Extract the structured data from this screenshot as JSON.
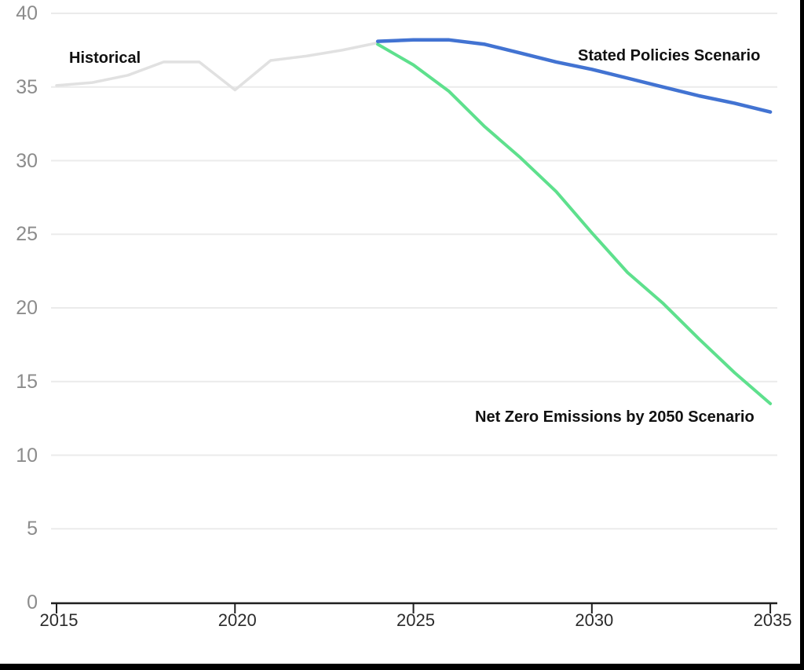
{
  "chart_data": {
    "type": "line",
    "title": "",
    "xlabel": "",
    "ylabel": "",
    "ylim": [
      0,
      40
    ],
    "xlim": [
      2015,
      2035
    ],
    "grid": "horizontal",
    "legend_position": "inline-annotations",
    "yticks": [
      0,
      5,
      10,
      15,
      20,
      25,
      30,
      35,
      40
    ],
    "xticks": [
      2015,
      2020,
      2025,
      2030,
      2035
    ],
    "series": [
      {
        "name": "Historical",
        "color": "#e1e1e1",
        "x": [
          2015,
          2016,
          2017,
          2018,
          2019,
          2020,
          2021,
          2022,
          2023,
          2024
        ],
        "values": [
          35.1,
          35.3,
          35.8,
          36.7,
          36.7,
          34.8,
          36.8,
          37.1,
          37.5,
          38.0
        ]
      },
      {
        "name": "Stated Policies Scenario",
        "color": "#4273d2",
        "x": [
          2024,
          2025,
          2026,
          2027,
          2028,
          2029,
          2030,
          2031,
          2032,
          2033,
          2034,
          2035
        ],
        "values": [
          38.1,
          38.2,
          38.2,
          37.9,
          37.3,
          36.7,
          36.2,
          35.6,
          35.0,
          34.4,
          33.9,
          33.3
        ]
      },
      {
        "name": "Net Zero Emissions by 2050 Scenario",
        "color": "#5ee08d",
        "x": [
          2024,
          2025,
          2026,
          2027,
          2028,
          2029,
          2030,
          2031,
          2032,
          2033,
          2034,
          2035
        ],
        "values": [
          37.9,
          36.5,
          34.7,
          32.3,
          30.2,
          27.9,
          25.1,
          22.4,
          20.3,
          17.9,
          15.6,
          13.5
        ]
      }
    ],
    "annotations": [
      "Historical",
      "Stated Policies Scenario",
      "Net Zero Emissions by 2050 Scenario"
    ]
  },
  "colors": {
    "background": "#ffffff",
    "frame_border": "#000000",
    "axis": "#1f1f1f",
    "gridline": "#ebebeb",
    "ytick_text": "#8c8c8c",
    "xtick_text": "#2b2b2b",
    "annotation_text": "#111111"
  }
}
